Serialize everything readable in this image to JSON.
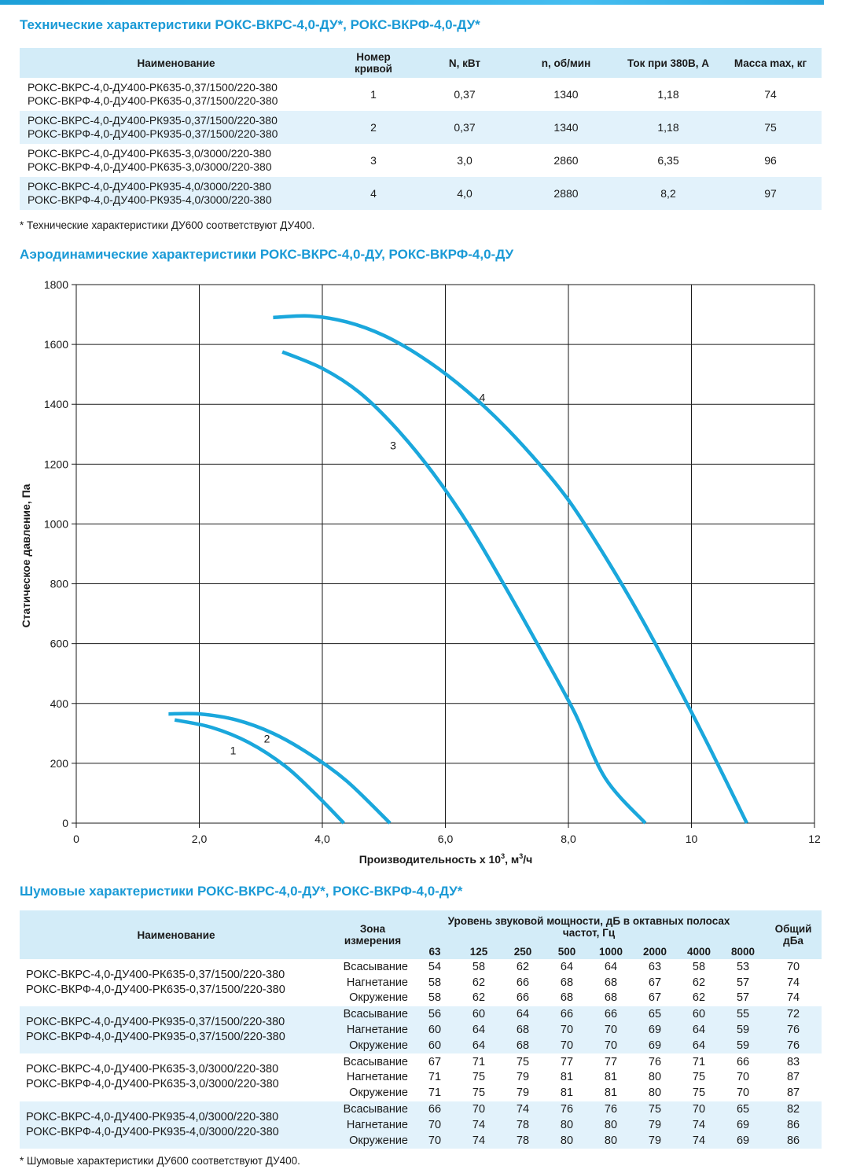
{
  "spec": {
    "title": "Технические характеристики РОКС-ВКРС-4,0-ДУ*, РОКС-ВКРФ-4,0-ДУ*",
    "headers": {
      "name": "Наименование",
      "curve_1": "Номер",
      "curve_2": "кривой",
      "power": "N, кВт",
      "rpm": "n, об/мин",
      "current": "Ток при 380В, А",
      "mass": "Масса max, кг"
    },
    "rows": [
      {
        "name1": "РОКС-ВКРС-4,0-ДУ400-РК635-0,37/1500/220-380",
        "name2": "РОКС-ВКРФ-4,0-ДУ400-РК635-0,37/1500/220-380",
        "curve": "1",
        "power": "0,37",
        "rpm": "1340",
        "current": "1,18",
        "mass": "74"
      },
      {
        "name1": "РОКС-ВКРС-4,0-ДУ400-РК935-0,37/1500/220-380",
        "name2": "РОКС-ВКРФ-4,0-ДУ400-РК935-0,37/1500/220-380",
        "curve": "2",
        "power": "0,37",
        "rpm": "1340",
        "current": "1,18",
        "mass": "75"
      },
      {
        "name1": "РОКС-ВКРС-4,0-ДУ400-РК635-3,0/3000/220-380",
        "name2": "РОКС-ВКРФ-4,0-ДУ400-РК635-3,0/3000/220-380",
        "curve": "3",
        "power": "3,0",
        "rpm": "2860",
        "current": "6,35",
        "mass": "96"
      },
      {
        "name1": "РОКС-ВКРС-4,0-ДУ400-РК935-4,0/3000/220-380",
        "name2": "РОКС-ВКРФ-4,0-ДУ400-РК935-4,0/3000/220-380",
        "curve": "4",
        "power": "4,0",
        "rpm": "2880",
        "current": "8,2",
        "mass": "97"
      }
    ],
    "note": "* Технические характеристики ДУ600 соответствуют ДУ400."
  },
  "aero": {
    "title": "Аэродинамические характеристики РОКС-ВКРС-4,0-ДУ, РОКС-ВКРФ-4,0-ДУ"
  },
  "chart_data": {
    "type": "line",
    "xlabel_main": "Производительность х 10",
    "xlabel_sup": "3",
    "xlabel_unit": ", м",
    "xlabel_unit_sup": "3",
    "xlabel_tail": "/ч",
    "ylabel": "Статическое давление, Па",
    "xlim": [
      0,
      12
    ],
    "ylim": [
      0,
      1800
    ],
    "xticks": [
      0,
      2,
      4,
      6,
      8,
      10,
      12
    ],
    "xtick_labels": [
      "0",
      "2,0",
      "4,0",
      "6,0",
      "8,0",
      "10",
      "12"
    ],
    "yticks": [
      0,
      200,
      400,
      600,
      800,
      1000,
      1200,
      1400,
      1600,
      1800
    ],
    "ytick_labels": [
      "0",
      "200",
      "400",
      "600",
      "800",
      "1000",
      "1200",
      "1400",
      "1600",
      "1800"
    ],
    "grid": true,
    "line_color": "#1aa7dc",
    "series": [
      {
        "name": "1",
        "label_at": [
          2.55,
          230
        ],
        "points": [
          [
            1.6,
            345
          ],
          [
            2.2,
            320
          ],
          [
            2.8,
            270
          ],
          [
            3.4,
            190
          ],
          [
            3.9,
            95
          ],
          [
            4.35,
            0
          ]
        ]
      },
      {
        "name": "2",
        "label_at": [
          3.1,
          270
        ],
        "points": [
          [
            1.5,
            365
          ],
          [
            2.0,
            365
          ],
          [
            2.6,
            345
          ],
          [
            3.2,
            300
          ],
          [
            3.8,
            230
          ],
          [
            4.4,
            140
          ],
          [
            5.1,
            0
          ]
        ]
      },
      {
        "name": "3",
        "label_at": [
          5.15,
          1250
        ],
        "points": [
          [
            3.35,
            1575
          ],
          [
            4.0,
            1520
          ],
          [
            4.6,
            1440
          ],
          [
            5.2,
            1320
          ],
          [
            5.8,
            1170
          ],
          [
            6.4,
            990
          ],
          [
            7.0,
            780
          ],
          [
            7.6,
            560
          ],
          [
            8.1,
            370
          ],
          [
            8.6,
            150
          ],
          [
            9.25,
            0
          ]
        ]
      },
      {
        "name": "4",
        "label_at": [
          6.6,
          1410
        ],
        "points": [
          [
            3.2,
            1690
          ],
          [
            3.8,
            1695
          ],
          [
            4.4,
            1675
          ],
          [
            5.0,
            1630
          ],
          [
            5.6,
            1560
          ],
          [
            6.2,
            1470
          ],
          [
            6.8,
            1360
          ],
          [
            7.4,
            1230
          ],
          [
            8.0,
            1080
          ],
          [
            8.6,
            890
          ],
          [
            9.2,
            680
          ],
          [
            9.8,
            450
          ],
          [
            10.3,
            250
          ],
          [
            10.9,
            0
          ]
        ]
      }
    ]
  },
  "noise": {
    "title": "Шумовые характеристики РОКС-ВКРС-4,0-ДУ*, РОКС-ВКРФ-4,0-ДУ*",
    "headers": {
      "name": "Наименование",
      "zone_1": "Зона",
      "zone_2": "измерения",
      "level_1": "Уровень звуковой мощности, дБ в октавных полосах",
      "level_2": "частот, Гц",
      "total_1": "Общий",
      "total_2": "дБа",
      "freqs": [
        "63",
        "125",
        "250",
        "500",
        "1000",
        "2000",
        "4000",
        "8000"
      ]
    },
    "groups": [
      {
        "name1": "РОКС-ВКРС-4,0-ДУ400-РК635-0,37/1500/220-380",
        "name2": "РОКС-ВКРФ-4,0-ДУ400-РК635-0,37/1500/220-380",
        "rows": [
          {
            "zone": "Всасывание",
            "v": [
              "54",
              "58",
              "62",
              "64",
              "64",
              "63",
              "58",
              "53"
            ],
            "total": "70"
          },
          {
            "zone": "Нагнетание",
            "v": [
              "58",
              "62",
              "66",
              "68",
              "68",
              "67",
              "62",
              "57"
            ],
            "total": "74"
          },
          {
            "zone": "Окружение",
            "v": [
              "58",
              "62",
              "66",
              "68",
              "68",
              "67",
              "62",
              "57"
            ],
            "total": "74"
          }
        ]
      },
      {
        "name1": "РОКС-ВКРС-4,0-ДУ400-РК935-0,37/1500/220-380",
        "name2": "РОКС-ВКРФ-4,0-ДУ400-РК935-0,37/1500/220-380",
        "rows": [
          {
            "zone": "Всасывание",
            "v": [
              "56",
              "60",
              "64",
              "66",
              "66",
              "65",
              "60",
              "55"
            ],
            "total": "72"
          },
          {
            "zone": "Нагнетание",
            "v": [
              "60",
              "64",
              "68",
              "70",
              "70",
              "69",
              "64",
              "59"
            ],
            "total": "76"
          },
          {
            "zone": "Окружение",
            "v": [
              "60",
              "64",
              "68",
              "70",
              "70",
              "69",
              "64",
              "59"
            ],
            "total": "76"
          }
        ]
      },
      {
        "name1": "РОКС-ВКРС-4,0-ДУ400-РК635-3,0/3000/220-380",
        "name2": "РОКС-ВКРФ-4,0-ДУ400-РК635-3,0/3000/220-380",
        "rows": [
          {
            "zone": "Всасывание",
            "v": [
              "67",
              "71",
              "75",
              "77",
              "77",
              "76",
              "71",
              "66"
            ],
            "total": "83"
          },
          {
            "zone": "Нагнетание",
            "v": [
              "71",
              "75",
              "79",
              "81",
              "81",
              "80",
              "75",
              "70"
            ],
            "total": "87"
          },
          {
            "zone": "Окружение",
            "v": [
              "71",
              "75",
              "79",
              "81",
              "81",
              "80",
              "75",
              "70"
            ],
            "total": "87"
          }
        ]
      },
      {
        "name1": "РОКС-ВКРС-4,0-ДУ400-РК935-4,0/3000/220-380",
        "name2": "РОКС-ВКРФ-4,0-ДУ400-РК935-4,0/3000/220-380",
        "rows": [
          {
            "zone": "Всасывание",
            "v": [
              "66",
              "70",
              "74",
              "76",
              "76",
              "75",
              "70",
              "65"
            ],
            "total": "82"
          },
          {
            "zone": "Нагнетание",
            "v": [
              "70",
              "74",
              "78",
              "80",
              "80",
              "79",
              "74",
              "69"
            ],
            "total": "86"
          },
          {
            "zone": "Окружение",
            "v": [
              "70",
              "74",
              "78",
              "80",
              "80",
              "79",
              "74",
              "69"
            ],
            "total": "86"
          }
        ]
      }
    ],
    "note": "* Шумовые характеристики ДУ600 соответствуют ДУ400."
  }
}
